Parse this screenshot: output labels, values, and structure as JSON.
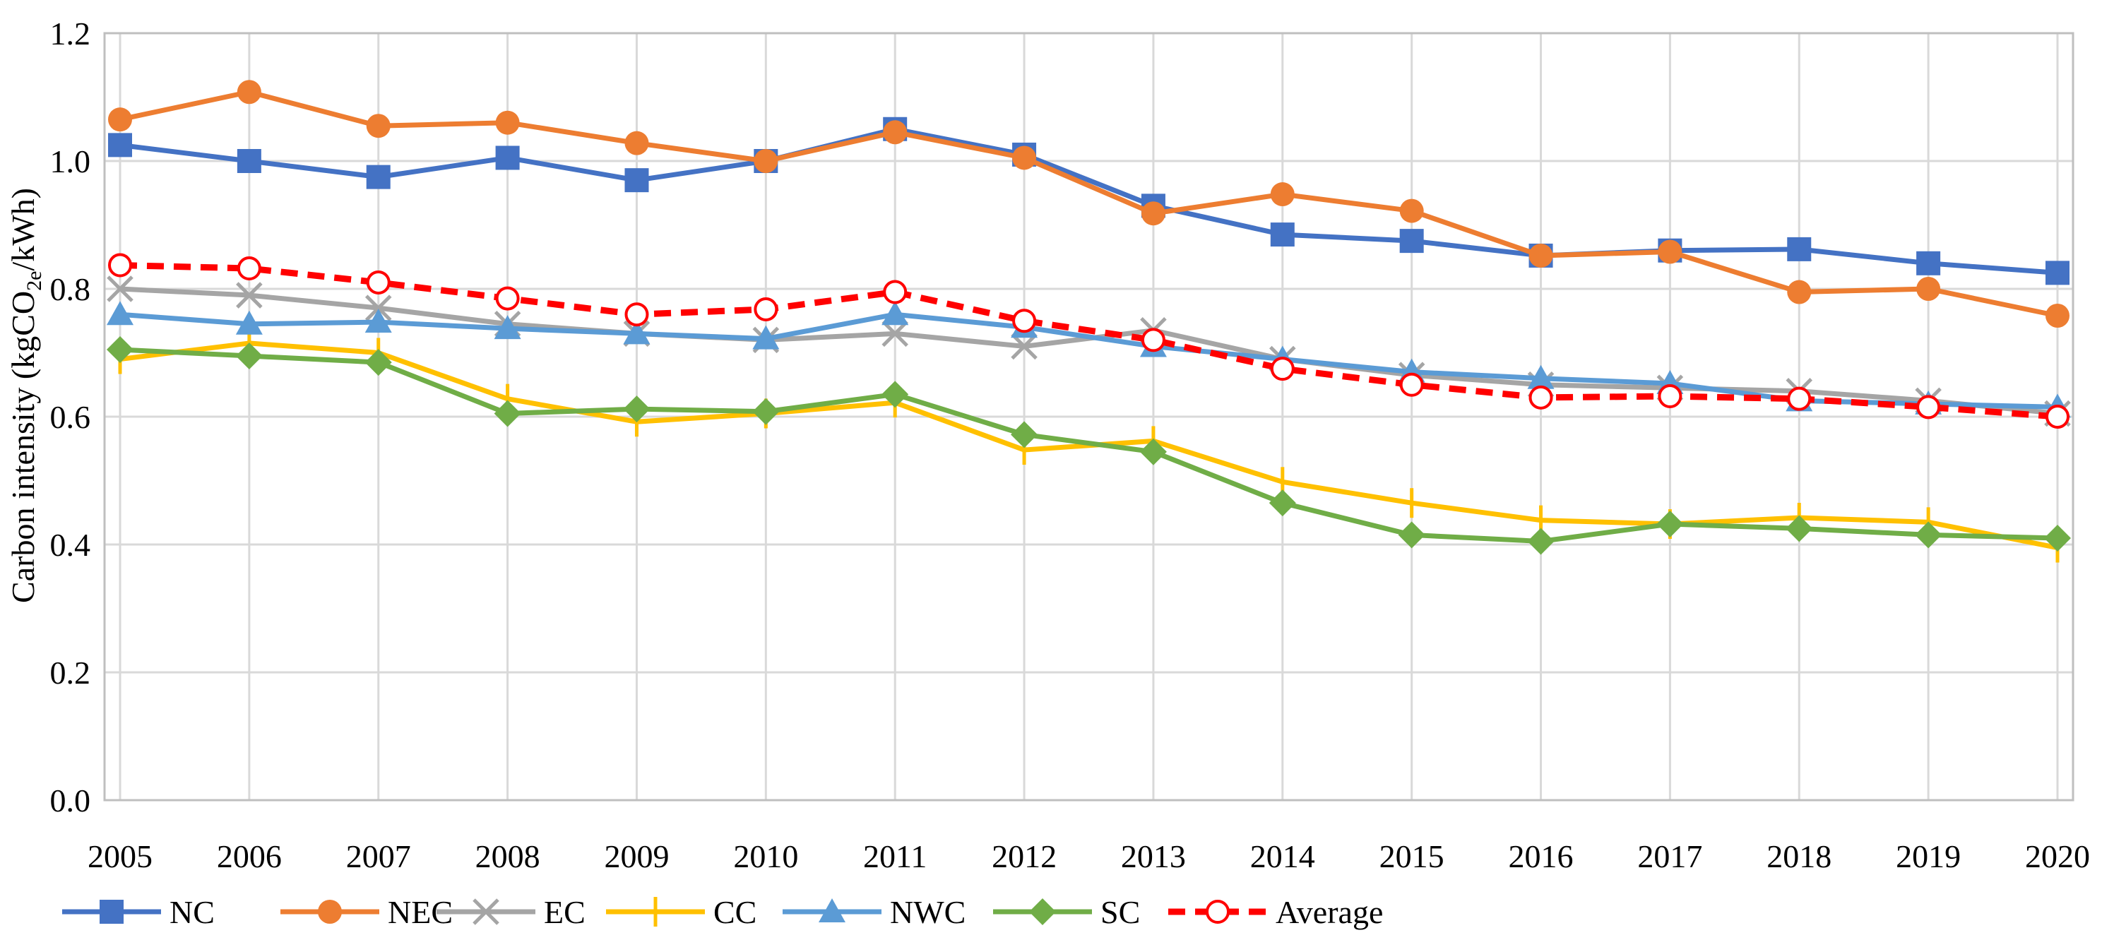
{
  "chart_data": {
    "type": "line",
    "title": "",
    "xlabel": "",
    "ylabel_main": "Carbon intensity (kgCO",
    "ylabel_sub": "2e",
    "ylabel_end": "/kWh)",
    "x": [
      "2005",
      "2006",
      "2007",
      "2008",
      "2009",
      "2010",
      "2011",
      "2012",
      "2013",
      "2014",
      "2015",
      "2016",
      "2017",
      "2018",
      "2019",
      "2020"
    ],
    "ylim": [
      0,
      1.2
    ],
    "yticks": [
      "0.0",
      "0.2",
      "0.4",
      "0.6",
      "0.8",
      "1.0",
      "1.2"
    ],
    "grid": true,
    "legend_position": "bottom",
    "series": [
      {
        "name": "NC",
        "color": "#4472C4",
        "marker": "square",
        "dashed": false,
        "values": [
          1.025,
          1.0,
          0.975,
          1.005,
          0.97,
          1.0,
          1.05,
          1.01,
          0.93,
          0.885,
          0.875,
          0.852,
          0.86,
          0.862,
          0.84,
          0.825
        ]
      },
      {
        "name": "NEC",
        "color": "#ED7D31",
        "marker": "circle",
        "dashed": false,
        "values": [
          1.065,
          1.108,
          1.055,
          1.06,
          1.028,
          1.0,
          1.045,
          1.005,
          0.918,
          0.948,
          0.922,
          0.852,
          0.858,
          0.795,
          0.8,
          0.758
        ]
      },
      {
        "name": "EC",
        "color": "#A5A5A5",
        "marker": "x",
        "dashed": false,
        "values": [
          0.8,
          0.79,
          0.77,
          0.745,
          0.73,
          0.72,
          0.73,
          0.71,
          0.735,
          0.69,
          0.665,
          0.65,
          0.645,
          0.64,
          0.625,
          0.605
        ]
      },
      {
        "name": "CC",
        "color": "#FFC000",
        "marker": "plus",
        "dashed": false,
        "values": [
          0.69,
          0.715,
          0.7,
          0.628,
          0.592,
          0.605,
          0.622,
          0.548,
          0.562,
          0.498,
          0.465,
          0.438,
          0.432,
          0.442,
          0.435,
          0.395
        ]
      },
      {
        "name": "NWC",
        "color": "#5B9BD5",
        "marker": "triangle",
        "dashed": false,
        "values": [
          0.76,
          0.745,
          0.748,
          0.738,
          0.73,
          0.722,
          0.76,
          0.74,
          0.71,
          0.69,
          0.67,
          0.66,
          0.652,
          0.625,
          0.62,
          0.615
        ]
      },
      {
        "name": "SC",
        "color": "#70AD47",
        "marker": "diamond",
        "dashed": false,
        "values": [
          0.705,
          0.695,
          0.685,
          0.605,
          0.612,
          0.608,
          0.635,
          0.572,
          0.545,
          0.465,
          0.415,
          0.405,
          0.432,
          0.425,
          0.415,
          0.41
        ]
      },
      {
        "name": "Average",
        "color": "#FF0000",
        "marker": "open-circle",
        "dashed": true,
        "values": [
          0.837,
          0.832,
          0.81,
          0.785,
          0.76,
          0.768,
          0.795,
          0.75,
          0.72,
          0.675,
          0.65,
          0.63,
          0.632,
          0.628,
          0.615,
          0.6
        ]
      }
    ]
  }
}
